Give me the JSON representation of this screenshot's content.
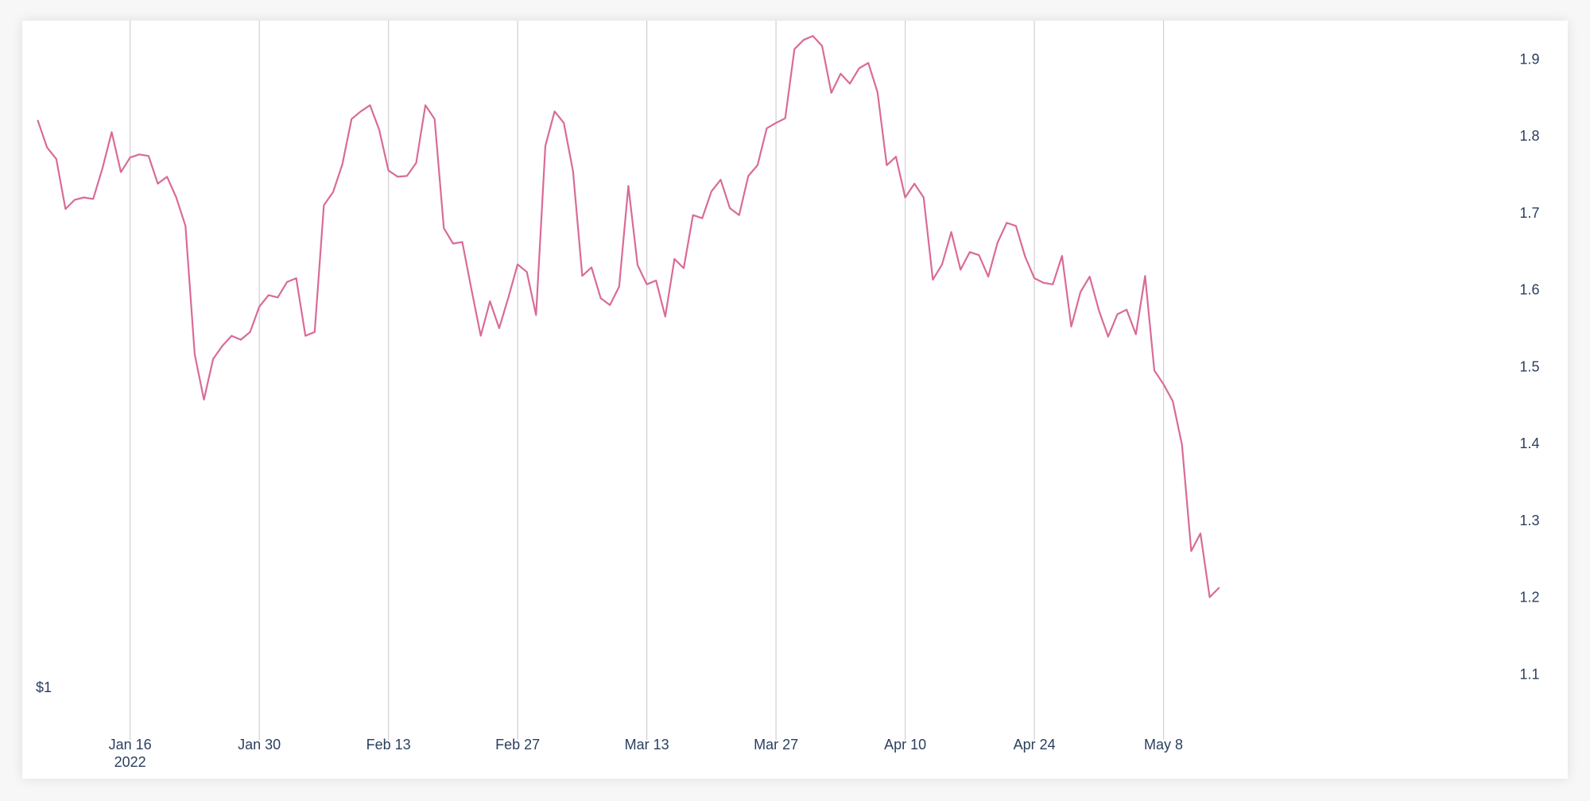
{
  "chart_data": {
    "type": "line",
    "title": "",
    "xlabel": "",
    "ylabel": "",
    "corner_label": "$1",
    "x_start": "2022-01-06",
    "x_ticks": [
      {
        "date": "2022-01-16",
        "label": "Jan 16",
        "sublabel": "2022"
      },
      {
        "date": "2022-01-30",
        "label": "Jan 30"
      },
      {
        "date": "2022-02-13",
        "label": "Feb 13"
      },
      {
        "date": "2022-02-27",
        "label": "Feb 27"
      },
      {
        "date": "2022-03-13",
        "label": "Mar 13"
      },
      {
        "date": "2022-03-27",
        "label": "Mar 27"
      },
      {
        "date": "2022-04-10",
        "label": "Apr 10"
      },
      {
        "date": "2022-04-24",
        "label": "Apr 24"
      },
      {
        "date": "2022-05-08",
        "label": "May 8"
      }
    ],
    "y_ticks": [
      "1.1",
      "1.2",
      "1.3",
      "1.4",
      "1.5",
      "1.6",
      "1.7",
      "1.8",
      "1.9"
    ],
    "ylim": [
      1.03,
      1.95
    ],
    "xlim": [
      "2022-01-05",
      "2022-05-12"
    ],
    "grid_x": true,
    "grid_y": false,
    "line_color": "#d96b98",
    "series": [
      {
        "values": [
          1.82,
          1.785,
          1.77,
          1.705,
          1.717,
          1.72,
          1.718,
          1.758,
          1.805,
          1.753,
          1.772,
          1.776,
          1.774,
          1.738,
          1.747,
          1.72,
          1.683,
          1.516,
          1.457,
          1.51,
          1.527,
          1.54,
          1.535,
          1.545,
          1.578,
          1.593,
          1.59,
          1.61,
          1.615,
          1.54,
          1.545,
          1.71,
          1.727,
          1.763,
          1.822,
          1.832,
          1.84,
          1.808,
          1.755,
          1.747,
          1.748,
          1.765,
          1.84,
          1.822,
          1.68,
          1.66,
          1.662,
          1.6,
          1.54,
          1.585,
          1.55,
          1.59,
          1.633,
          1.623,
          1.567,
          1.787,
          1.832,
          1.817,
          1.754,
          1.618,
          1.629,
          1.589,
          1.58,
          1.604,
          1.735,
          1.632,
          1.607,
          1.612,
          1.565,
          1.64,
          1.628,
          1.697,
          1.693,
          1.728,
          1.743,
          1.706,
          1.697,
          1.748,
          1.762,
          1.81,
          1.817,
          1.823,
          1.913,
          1.925,
          1.93,
          1.917,
          1.856,
          1.881,
          1.868,
          1.888,
          1.895,
          1.857,
          1.762,
          1.773,
          1.72,
          1.738,
          1.72,
          1.613,
          1.633,
          1.675,
          1.626,
          1.649,
          1.645,
          1.617,
          1.661,
          1.687,
          1.683,
          1.643,
          1.615,
          1.609,
          1.607,
          1.644,
          1.552,
          1.597,
          1.617,
          1.573,
          1.539,
          1.568,
          1.574,
          1.542,
          1.618,
          1.495,
          1.477,
          1.455,
          1.398,
          1.26,
          1.283,
          1.2,
          1.212
        ]
      }
    ]
  }
}
